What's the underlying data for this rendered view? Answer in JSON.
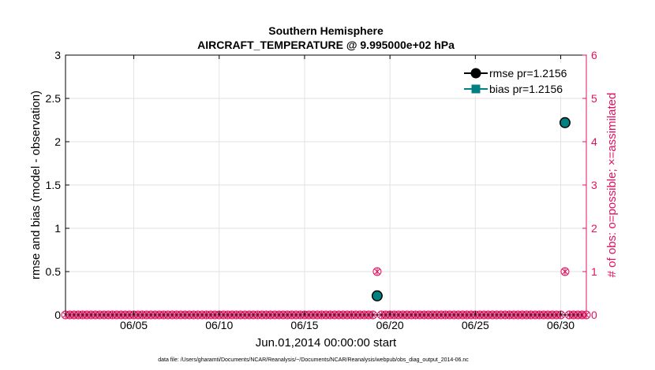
{
  "chart_data": {
    "type": "scatter",
    "title_line1": "Southern Hemisphere",
    "title_line2": "AIRCRAFT_TEMPERATURE @ 9.995000e+02 hPa",
    "xlabel": "Jun.01,2014 00:00:00 start",
    "ylabel_left": "rmse and bias (model - observation)",
    "ylabel_right": "# of obs: o=possible; ×=assimilated",
    "footer": "data file: /Users/gharamti/Documents/NCAR/Reanalysis/~/Documents/NCAR/Reanalysis/webpub/obs_diag_output_2014-06.nc",
    "xlim": [
      1.0,
      31.5
    ],
    "ylim_left": [
      0,
      3
    ],
    "ylim_right": [
      0,
      6
    ],
    "x_ticks": [
      {
        "value": 5,
        "label": "06/05"
      },
      {
        "value": 10,
        "label": "06/10"
      },
      {
        "value": 15,
        "label": "06/15"
      },
      {
        "value": 20,
        "label": "06/20"
      },
      {
        "value": 25,
        "label": "06/25"
      },
      {
        "value": 30,
        "label": "06/30"
      }
    ],
    "y_ticks_left": [
      {
        "value": 0,
        "label": "0"
      },
      {
        "value": 0.5,
        "label": "0.5"
      },
      {
        "value": 1,
        "label": "1"
      },
      {
        "value": 1.5,
        "label": "1.5"
      },
      {
        "value": 2,
        "label": "2"
      },
      {
        "value": 2.5,
        "label": "2.5"
      },
      {
        "value": 3,
        "label": "3"
      }
    ],
    "y_ticks_right": [
      {
        "value": 0,
        "label": "0"
      },
      {
        "value": 1,
        "label": "1"
      },
      {
        "value": 2,
        "label": "2"
      },
      {
        "value": 3,
        "label": "3"
      },
      {
        "value": 4,
        "label": "4"
      },
      {
        "value": 5,
        "label": "5"
      },
      {
        "value": 6,
        "label": "6"
      }
    ],
    "grid": true,
    "legend_position": "top-right",
    "series": [
      {
        "name": "rmse pr=1.2156",
        "color": "#000000",
        "marker": "circle",
        "x": [
          19.25,
          30.25
        ],
        "y": [
          0.22,
          2.22
        ]
      },
      {
        "name": "bias pr=1.2156",
        "color": "#008080",
        "marker": "square",
        "x": [
          19.25,
          30.25
        ],
        "y": [
          0.22,
          2.22
        ]
      }
    ],
    "obs_counts": {
      "color": "#e0115f",
      "x_start": 1.0,
      "x_step": 0.25,
      "x_end": 31.5,
      "nonzero": [
        {
          "x": 19.25,
          "possible": 1,
          "assimilated": 1
        },
        {
          "x": 30.25,
          "possible": 1,
          "assimilated": 1
        }
      ]
    }
  }
}
